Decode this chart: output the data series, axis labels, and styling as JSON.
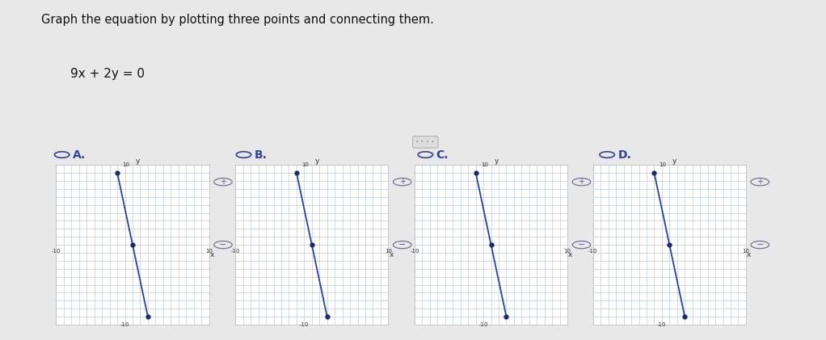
{
  "title_text": "Graph the equation by plotting three points and connecting them.",
  "equation": "9x + 2y = 0",
  "bg_color": "#e8e8e8",
  "panel_bg": "#f0f0f0",
  "grid_bg": "#ffffff",
  "line_color": "#2244aa",
  "point_color": "#1a2a6a",
  "axis_color": "#111111",
  "grid_color": "#b8c4d0",
  "graph_A_points": [
    [
      -2,
      9
    ],
    [
      0,
      0
    ],
    [
      2,
      -9
    ]
  ],
  "graph_B_points": [
    [
      -2,
      9
    ],
    [
      0,
      0
    ],
    [
      2,
      -9
    ]
  ],
  "graph_C_points": [
    [
      -2,
      9
    ],
    [
      0,
      0
    ],
    [
      2,
      -9
    ]
  ],
  "graph_D_points": [
    [
      -2,
      9
    ],
    [
      0,
      0
    ],
    [
      2,
      -9
    ]
  ],
  "option_labels": [
    "A.",
    "B.",
    "C.",
    "D."
  ],
  "option_color": "#334499",
  "title_color": "#111111",
  "separator_color": "#999999"
}
